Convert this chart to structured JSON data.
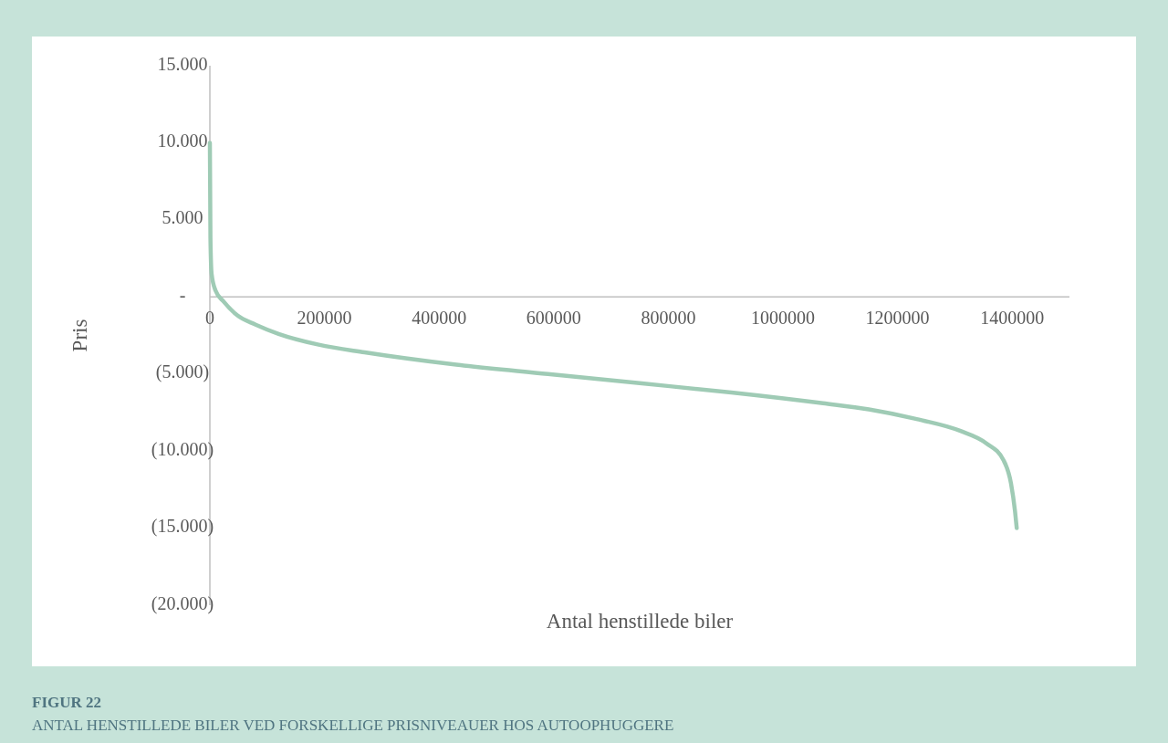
{
  "chart_data": {
    "type": "line",
    "title": "FIGUR 22",
    "subtitle": "ANTAL HENSTILLEDE BILER VED FORSKELLIGE PRISNIVEAUER HOS AUTOOPHUGGERE",
    "xlabel": "Antal henstillede biler",
    "ylabel": "Pris",
    "x": [
      0,
      1000,
      3000,
      10000,
      24000,
      48000,
      80000,
      120000,
      190000,
      270000,
      430000,
      590000,
      750000,
      910000,
      1070000,
      1150000,
      1230000,
      1310000,
      1355000,
      1385000,
      1398000,
      1405000,
      1408000
    ],
    "series": [
      {
        "color": "#9fcbb5",
        "values": [
          10000,
          3800,
          1500,
          400,
          -300,
          -1200,
          -1800,
          -2400,
          -3100,
          -3600,
          -4400,
          -5000,
          -5600,
          -6200,
          -6900,
          -7300,
          -7900,
          -8700,
          -9500,
          -10600,
          -12100,
          -13900,
          -15000
        ]
      }
    ],
    "xlim": [
      0,
      1500000
    ],
    "xticks": [
      0,
      200000,
      400000,
      600000,
      800000,
      1000000,
      1200000,
      1400000
    ],
    "ylim": [
      -20000,
      15000
    ],
    "yticks": [
      {
        "value": 15000,
        "label": "15.000"
      },
      {
        "value": 10000,
        "label": "10.000"
      },
      {
        "value": 5000,
        "label": "5.000"
      },
      {
        "value": 0,
        "label": "-"
      },
      {
        "value": -5000,
        "label": "(5.000)"
      },
      {
        "value": -10000,
        "label": "(10.000)"
      },
      {
        "value": -15000,
        "label": "(15.000)"
      },
      {
        "value": -20000,
        "label": "(20.000)"
      }
    ],
    "marker": "none",
    "line_style": "solid"
  }
}
